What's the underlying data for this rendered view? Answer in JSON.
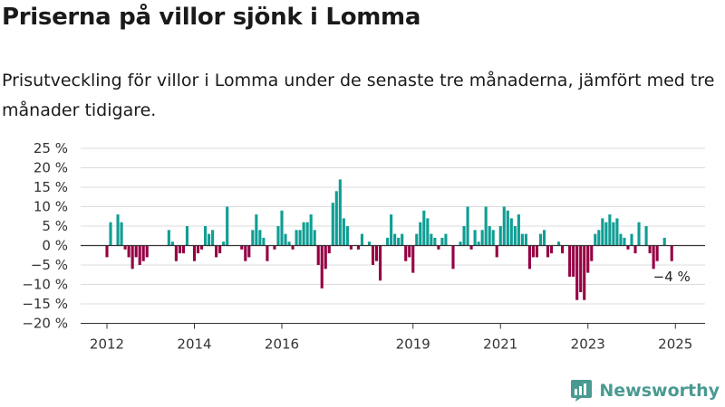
{
  "title": "Priserna på villor sjönk i Lomma",
  "subtitle": "Prisutveckling för villor i Lomma under de senaste tre månaderna, jämfört med tre månader tidigare.",
  "brand": {
    "name": "Newsworthy",
    "color": "#4a9a92"
  },
  "colors": {
    "positive": "#0e9e94",
    "negative": "#950043",
    "grid": "#dcdcdc",
    "axis": "#333333"
  },
  "chart_data": {
    "type": "bar",
    "title": "",
    "xlabel": "",
    "ylabel": "",
    "ylim": [
      -20,
      25
    ],
    "y_ticks": [
      25,
      20,
      15,
      10,
      5,
      0,
      -5,
      -10,
      -15,
      -20
    ],
    "y_tick_labels": [
      "25 %",
      "20 %",
      "15 %",
      "10 %",
      "5 %",
      "0 %",
      "−5 %",
      "−10 %",
      "−15 %",
      "−20 %"
    ],
    "x_ticks": [
      2012,
      2014,
      2016,
      2019,
      2021,
      2023,
      2025
    ],
    "grid": true,
    "last_value_label": "−4 %",
    "x_start": "2012-01",
    "values": [
      -3,
      6,
      null,
      8,
      6,
      -1,
      -3,
      -6,
      -3,
      -5,
      -4,
      -3,
      null,
      null,
      null,
      null,
      null,
      4,
      1,
      -4,
      -2,
      -2,
      5,
      null,
      -4,
      -2,
      -1,
      5,
      3,
      4,
      -3,
      -2,
      1,
      10,
      null,
      null,
      null,
      -1,
      -4,
      -3,
      4,
      8,
      4,
      2,
      -4,
      null,
      -1,
      5,
      9,
      3,
      1,
      -1,
      4,
      4,
      6,
      6,
      8,
      4,
      -5,
      -11,
      -6,
      -2,
      11,
      14,
      17,
      7,
      5,
      -1,
      null,
      -1,
      3,
      null,
      1,
      -5,
      -4,
      -9,
      null,
      2,
      8,
      3,
      2,
      3,
      -4,
      -3,
      -7,
      3,
      6,
      9,
      7,
      3,
      2,
      -1,
      2,
      3,
      null,
      -6,
      null,
      1,
      5,
      10,
      -1,
      4,
      1,
      4,
      10,
      5,
      4,
      -3,
      5,
      10,
      9,
      7,
      5,
      8,
      3,
      3,
      -6,
      -3,
      -3,
      3,
      4,
      -3,
      -2,
      null,
      1,
      -2,
      null,
      -8,
      -8,
      -14,
      -12,
      -14,
      -7,
      -4,
      3,
      4,
      7,
      6,
      8,
      6,
      7,
      3,
      2,
      -1,
      3,
      -2,
      6,
      null,
      5,
      -2,
      -6,
      -4,
      null,
      2,
      null,
      -4
    ]
  }
}
